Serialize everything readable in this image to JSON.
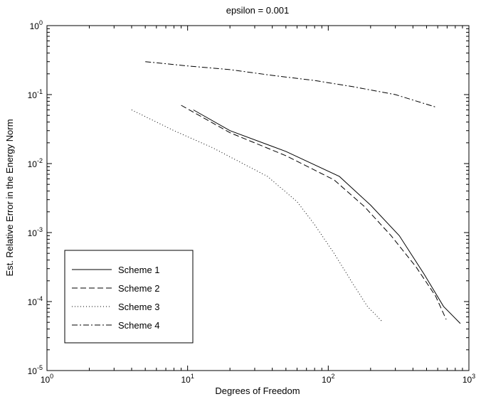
{
  "chart_data": {
    "type": "line",
    "title": "epsilon = 0.001",
    "xlabel": "Degrees of Freedom",
    "ylabel": "Est. Relative Error in the Energy Norm",
    "xscale": "log",
    "yscale": "log",
    "xlim": [
      1,
      1000
    ],
    "ylim": [
      1e-05,
      1
    ],
    "grid": false,
    "legend_position": "lower-left",
    "x_ticks": [
      {
        "value": 1,
        "base": "10",
        "exp": "0"
      },
      {
        "value": 10,
        "base": "10",
        "exp": "1"
      },
      {
        "value": 100,
        "base": "10",
        "exp": "2"
      },
      {
        "value": 1000,
        "base": "10",
        "exp": "3"
      }
    ],
    "y_ticks": [
      {
        "value": 1e-05,
        "base": "10",
        "exp": "-5"
      },
      {
        "value": 0.0001,
        "base": "10",
        "exp": "-4"
      },
      {
        "value": 0.001,
        "base": "10",
        "exp": "-3"
      },
      {
        "value": 0.01,
        "base": "10",
        "exp": "-2"
      },
      {
        "value": 0.1,
        "base": "10",
        "exp": "-1"
      },
      {
        "value": 1,
        "base": "10",
        "exp": "0"
      }
    ],
    "series": [
      {
        "name": "Scheme 1",
        "dash": "",
        "x": [
          11,
          20,
          50,
          120,
          200,
          320,
          480,
          660,
          870
        ],
        "y": [
          0.06,
          0.03,
          0.015,
          0.0065,
          0.0025,
          0.0009,
          0.00025,
          8.5e-05,
          4.8e-05
        ]
      },
      {
        "name": "Scheme 2",
        "dash": "8,4",
        "x": [
          9,
          20,
          50,
          110,
          180,
          280,
          420,
          580,
          690
        ],
        "y": [
          0.07,
          0.028,
          0.013,
          0.0058,
          0.0024,
          0.0009,
          0.00032,
          0.00012,
          5.5e-05
        ]
      },
      {
        "name": "Scheme 3",
        "dash": "1,3",
        "x": [
          4,
          8,
          15,
          37,
          60,
          80,
          110,
          150,
          190,
          240
        ],
        "y": [
          0.06,
          0.03,
          0.017,
          0.0065,
          0.0028,
          0.0013,
          0.0005,
          0.00018,
          8.5e-05,
          5.2e-05
        ]
      },
      {
        "name": "Scheme 4",
        "dash": "8,3,2,3",
        "x": [
          5,
          10,
          20,
          40,
          80,
          150,
          300,
          580
        ],
        "y": [
          0.3,
          0.26,
          0.23,
          0.19,
          0.16,
          0.13,
          0.1,
          0.066
        ]
      }
    ]
  }
}
